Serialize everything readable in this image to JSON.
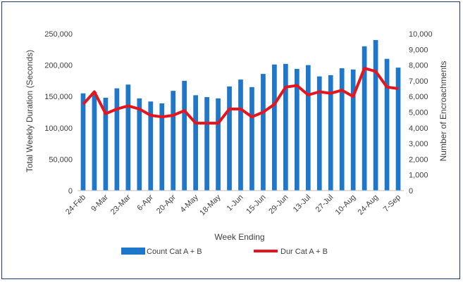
{
  "chart_data": {
    "type": "bar",
    "xlabel": "Week Ending",
    "ylabel_left": "Total Weekly Duration (Seconds)",
    "ylabel_right": "Number of Encroachments",
    "left_axis": {
      "min": 0,
      "max": 250000,
      "step": 50000,
      "tick_labels": [
        "0",
        "50,000",
        "100,000",
        "150,000",
        "200,000",
        "250,000"
      ]
    },
    "right_axis": {
      "min": 0,
      "max": 10000,
      "step": 1000,
      "tick_labels": [
        "0",
        "1,000",
        "2,000",
        "3,000",
        "4,000",
        "5,000",
        "6,000",
        "7,000",
        "8,000",
        "9,000",
        "10,000"
      ]
    },
    "x_tick_labels": [
      "24-Feb",
      "9-Mar",
      "23-Mar",
      "6-Apr",
      "20-Apr",
      "4-May",
      "18-May",
      "1-Jun",
      "15-Jun",
      "29-Jun",
      "13-Jul",
      "27-Jul",
      "10-Aug",
      "24-Aug",
      "7-Sep"
    ],
    "x_tick_every": 2,
    "weeks": 29,
    "grid": false,
    "legend_position": "bottom",
    "series": [
      {
        "name": "Count Cat A + B",
        "type": "bar",
        "axis": "left",
        "color": "#1f77c9",
        "values": [
          155000,
          157000,
          148000,
          163000,
          169000,
          147000,
          142000,
          139000,
          159000,
          175000,
          152000,
          149000,
          147000,
          166000,
          177000,
          165000,
          186000,
          201000,
          202000,
          194000,
          200000,
          182000,
          184000,
          195000,
          193000,
          230000,
          240000,
          210000,
          196000
        ]
      },
      {
        "name": "Dur Cat A + B",
        "type": "line",
        "axis": "right",
        "color": "#e8141c",
        "values": [
          5500,
          6300,
          4900,
          5200,
          5400,
          5200,
          4800,
          4700,
          4800,
          5100,
          4300,
          4300,
          4300,
          5200,
          5200,
          4700,
          5000,
          5500,
          6600,
          6700,
          6100,
          6300,
          6200,
          6400,
          6000,
          7800,
          7600,
          6600,
          6500
        ]
      }
    ]
  }
}
